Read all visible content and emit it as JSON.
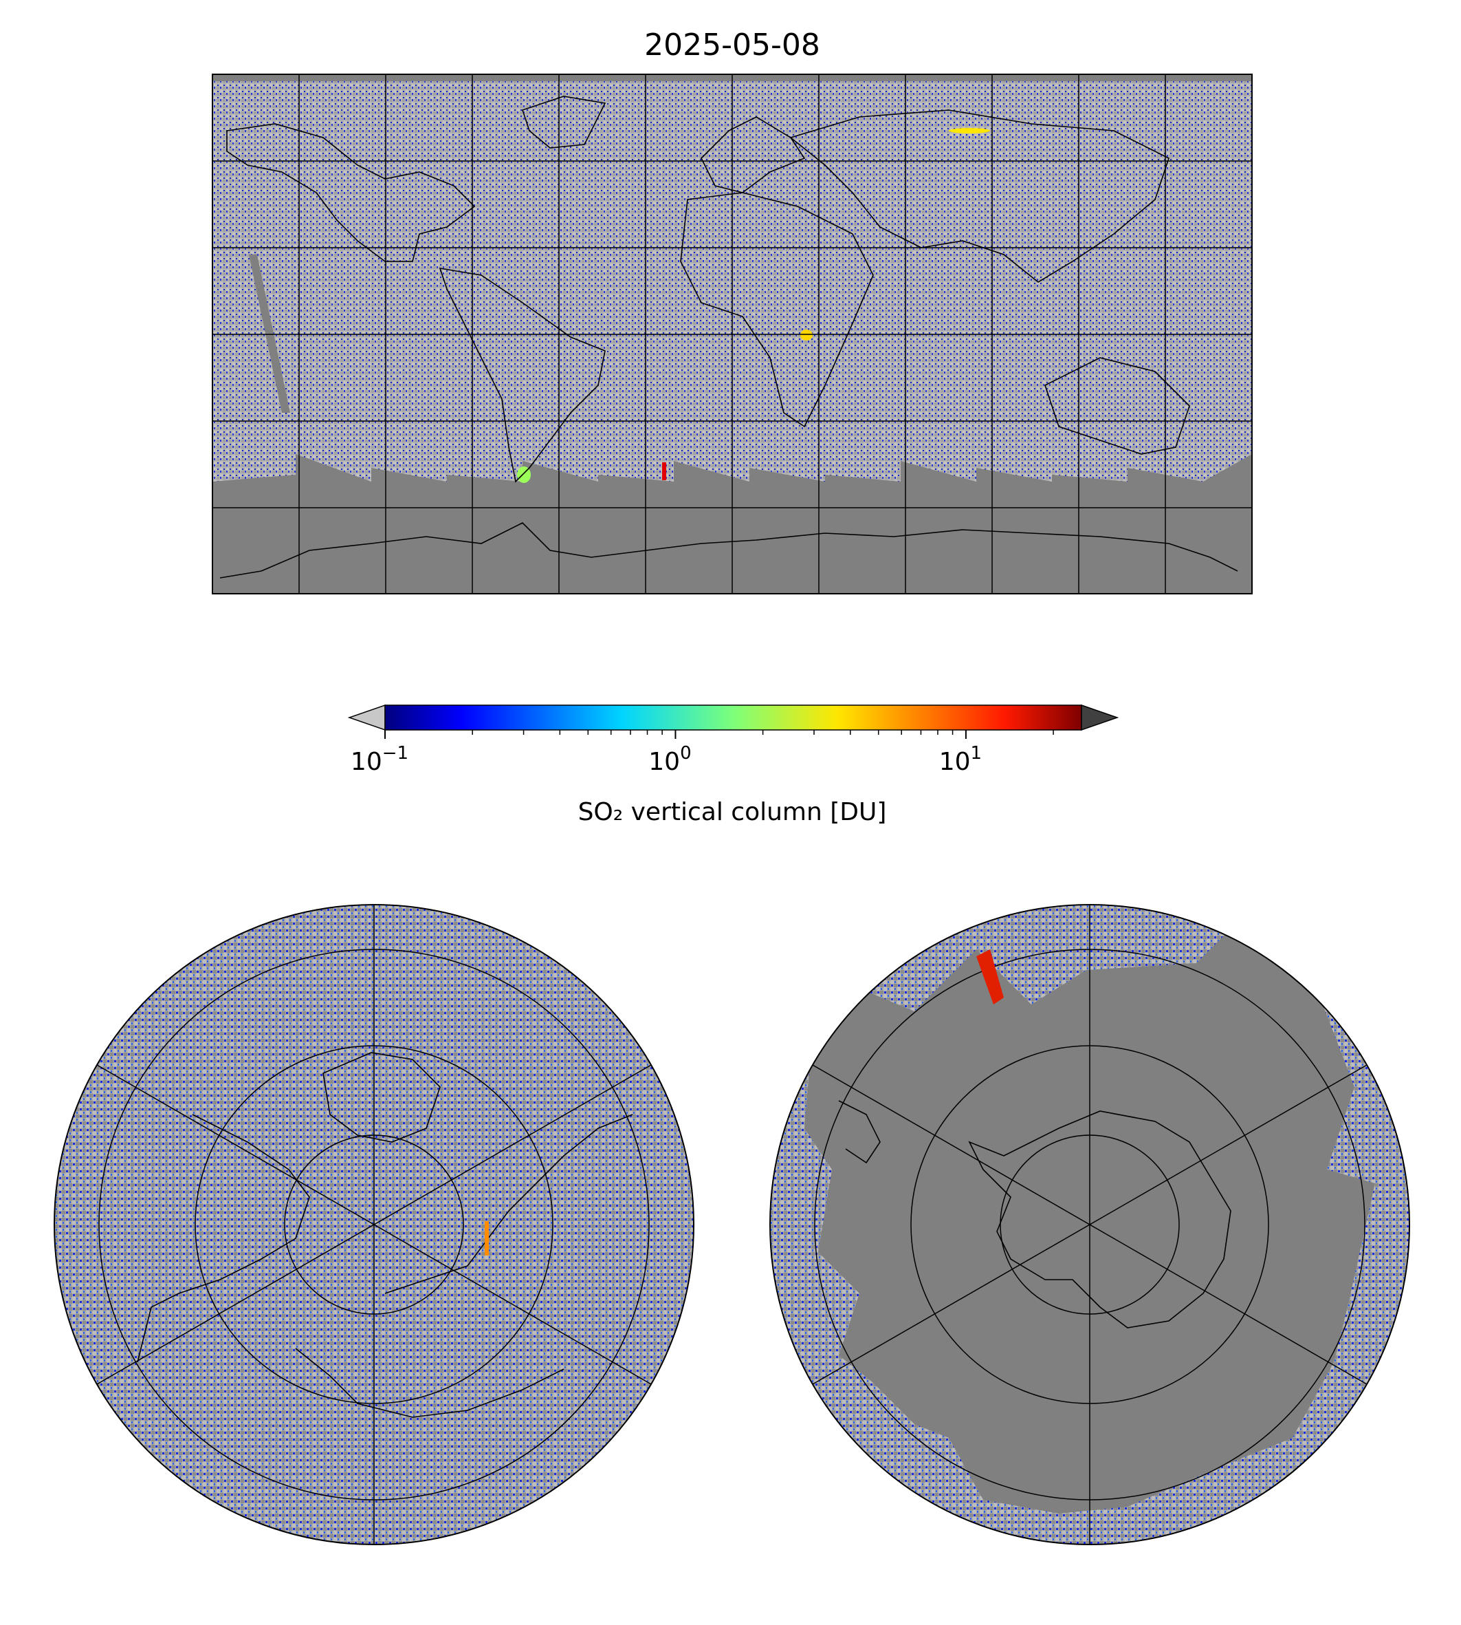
{
  "title": "2025-05-08",
  "colorbar": {
    "label": "SO₂ vertical column [DU]",
    "scale": "log",
    "range": [
      0.1,
      25
    ],
    "extend": "both",
    "colormap": "jet",
    "under_color": "#c8c8c8",
    "over_color": "#404040",
    "ticks": [
      {
        "value": 0.1,
        "base": "10",
        "exp": "−1"
      },
      {
        "value": 1,
        "base": "10",
        "exp": "0"
      },
      {
        "value": 10,
        "base": "10",
        "exp": "1"
      }
    ]
  },
  "colors": {
    "no_data": "#808080",
    "background_noise": "#b5b5b5",
    "coastline": "#000000",
    "gridline": "#000000"
  },
  "panels": {
    "global": {
      "projection": "equirectangular",
      "lon_range": [
        -180,
        180
      ],
      "lat_range": [
        -90,
        90
      ],
      "grid_lon_step": 30,
      "grid_lat_step": 30
    },
    "north_polar": {
      "projection": "north-polar-stereographic"
    },
    "south_polar": {
      "projection": "south-polar-stereographic"
    }
  }
}
